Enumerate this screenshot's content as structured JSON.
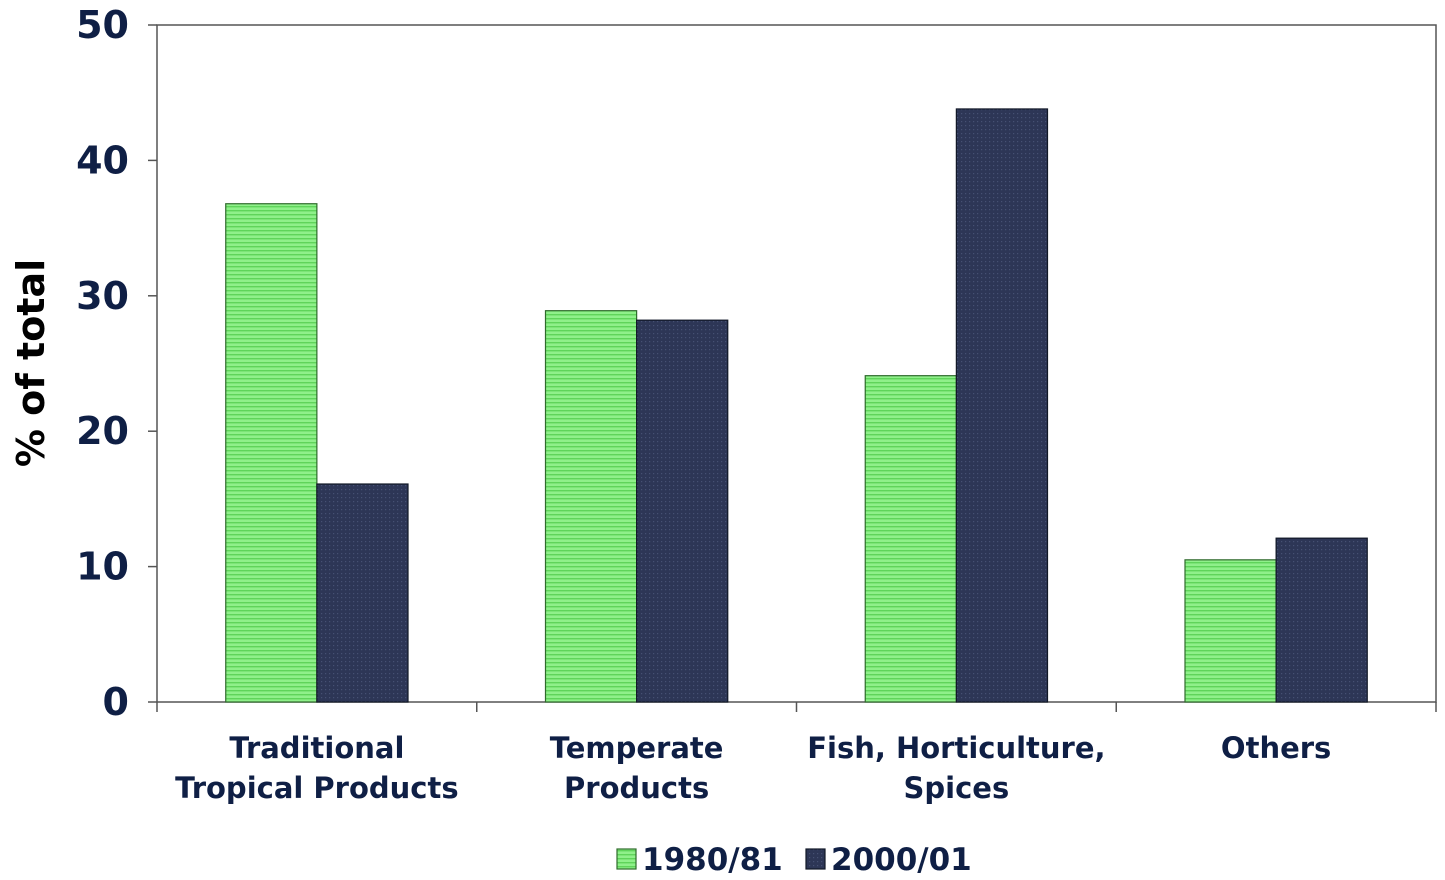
{
  "chart_data": {
    "type": "bar",
    "title": "",
    "xlabel": "",
    "ylabel": "% of total",
    "ylim": [
      0,
      50
    ],
    "yticks": [
      0,
      10,
      20,
      30,
      40,
      50
    ],
    "grid": false,
    "legend_position": "bottom",
    "categories": [
      [
        "Traditional",
        "Tropical Products"
      ],
      [
        "Temperate",
        "Products"
      ],
      [
        "Fish, Horticulture,",
        "Spices"
      ],
      [
        "Others"
      ]
    ],
    "series": [
      {
        "name": "1980/81",
        "color": "#7fe87a",
        "values": [
          36.8,
          28.9,
          24.1,
          10.5
        ]
      },
      {
        "name": "2000/01",
        "color": "#2a3352",
        "values": [
          16.1,
          28.2,
          43.8,
          12.1
        ]
      }
    ]
  }
}
